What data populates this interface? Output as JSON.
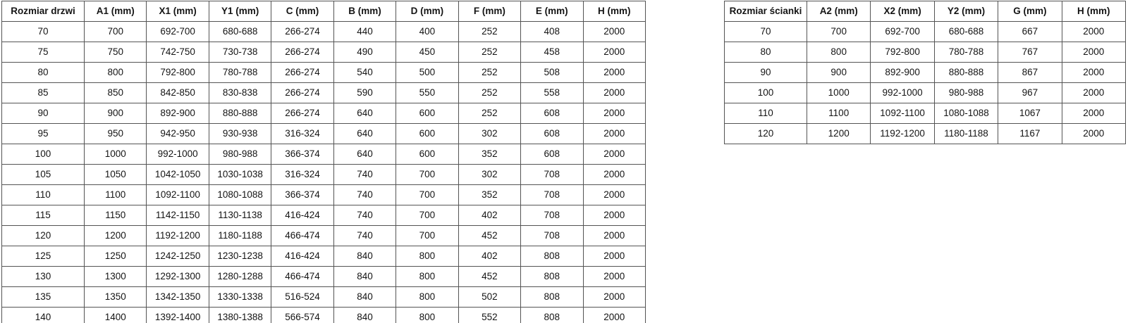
{
  "colors": {
    "table_border": "#545454",
    "text": "#141414",
    "background": "#ffffff"
  },
  "door_table": {
    "headers": [
      "Rozmiar drzwi",
      "A1 (mm)",
      "X1 (mm)",
      "Y1 (mm)",
      "C (mm)",
      "B (mm)",
      "D (mm)",
      "F (mm)",
      "E (mm)",
      "H (mm)"
    ],
    "rows": [
      [
        "70",
        "700",
        "692-700",
        "680-688",
        "266-274",
        "440",
        "400",
        "252",
        "408",
        "2000"
      ],
      [
        "75",
        "750",
        "742-750",
        "730-738",
        "266-274",
        "490",
        "450",
        "252",
        "458",
        "2000"
      ],
      [
        "80",
        "800",
        "792-800",
        "780-788",
        "266-274",
        "540",
        "500",
        "252",
        "508",
        "2000"
      ],
      [
        "85",
        "850",
        "842-850",
        "830-838",
        "266-274",
        "590",
        "550",
        "252",
        "558",
        "2000"
      ],
      [
        "90",
        "900",
        "892-900",
        "880-888",
        "266-274",
        "640",
        "600",
        "252",
        "608",
        "2000"
      ],
      [
        "95",
        "950",
        "942-950",
        "930-938",
        "316-324",
        "640",
        "600",
        "302",
        "608",
        "2000"
      ],
      [
        "100",
        "1000",
        "992-1000",
        "980-988",
        "366-374",
        "640",
        "600",
        "352",
        "608",
        "2000"
      ],
      [
        "105",
        "1050",
        "1042-1050",
        "1030-1038",
        "316-324",
        "740",
        "700",
        "302",
        "708",
        "2000"
      ],
      [
        "110",
        "1100",
        "1092-1100",
        "1080-1088",
        "366-374",
        "740",
        "700",
        "352",
        "708",
        "2000"
      ],
      [
        "115",
        "1150",
        "1142-1150",
        "1130-1138",
        "416-424",
        "740",
        "700",
        "402",
        "708",
        "2000"
      ],
      [
        "120",
        "1200",
        "1192-1200",
        "1180-1188",
        "466-474",
        "740",
        "700",
        "452",
        "708",
        "2000"
      ],
      [
        "125",
        "1250",
        "1242-1250",
        "1230-1238",
        "416-424",
        "840",
        "800",
        "402",
        "808",
        "2000"
      ],
      [
        "130",
        "1300",
        "1292-1300",
        "1280-1288",
        "466-474",
        "840",
        "800",
        "452",
        "808",
        "2000"
      ],
      [
        "135",
        "1350",
        "1342-1350",
        "1330-1338",
        "516-524",
        "840",
        "800",
        "502",
        "808",
        "2000"
      ],
      [
        "140",
        "1400",
        "1392-1400",
        "1380-1388",
        "566-574",
        "840",
        "800",
        "552",
        "808",
        "2000"
      ]
    ]
  },
  "wall_table": {
    "headers": [
      "Rozmiar ścianki",
      "A2 (mm)",
      "X2 (mm)",
      "Y2 (mm)",
      "G (mm)",
      "H (mm)"
    ],
    "rows": [
      [
        "70",
        "700",
        "692-700",
        "680-688",
        "667",
        "2000"
      ],
      [
        "80",
        "800",
        "792-800",
        "780-788",
        "767",
        "2000"
      ],
      [
        "90",
        "900",
        "892-900",
        "880-888",
        "867",
        "2000"
      ],
      [
        "100",
        "1000",
        "992-1000",
        "980-988",
        "967",
        "2000"
      ],
      [
        "110",
        "1100",
        "1092-1100",
        "1080-1088",
        "1067",
        "2000"
      ],
      [
        "120",
        "1200",
        "1192-1200",
        "1180-1188",
        "1167",
        "2000"
      ]
    ]
  }
}
